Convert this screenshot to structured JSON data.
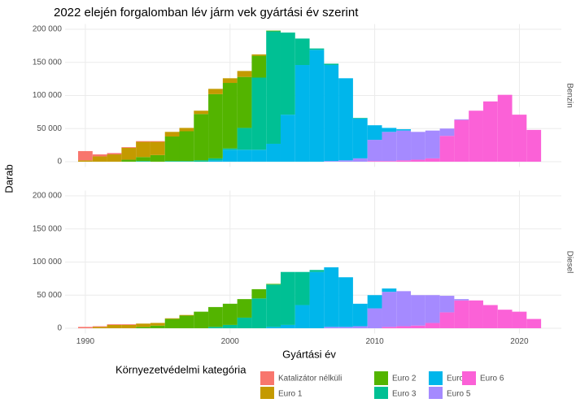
{
  "chart_data": {
    "type": "bar",
    "stacked": true,
    "title": "2022 elején forgalomban lév  járm vek gyártási év szerint",
    "xlabel": "Gyártási év",
    "ylabel": "Darab",
    "legend_title": "Környezetvédelmi kategória",
    "legend_position": "bottom",
    "grid": true,
    "facets": [
      "Benzin",
      "Diesel"
    ],
    "x": [
      1990,
      1991,
      1992,
      1993,
      1994,
      1995,
      1996,
      1997,
      1998,
      1999,
      2000,
      2001,
      2002,
      2003,
      2004,
      2005,
      2006,
      2007,
      2008,
      2009,
      2010,
      2011,
      2012,
      2013,
      2014,
      2015,
      2016,
      2017,
      2018,
      2019,
      2020,
      2021
    ],
    "xlim": [
      1988.6,
      2022.9
    ],
    "xticks": [
      1990,
      2000,
      2010,
      2020
    ],
    "ylim": [
      -8000,
      208000
    ],
    "yticks": [
      0,
      {
        "value": 50000,
        "label": "50 000"
      },
      {
        "value": 100000,
        "label": "100 000"
      },
      {
        "value": 150000,
        "label": "150 000"
      },
      {
        "value": 200000,
        "label": "200 000"
      }
    ],
    "series": [
      {
        "name": "Katalizátor nélküli",
        "color": "#F8766D",
        "values": [
          [
            14000,
            3000,
            2000,
            1000,
            1000,
            1000,
            0,
            0,
            0,
            0,
            0,
            0,
            0,
            0,
            0,
            0,
            0,
            0,
            0,
            0,
            0,
            0,
            0,
            0,
            0,
            0,
            0,
            0,
            0,
            0,
            0,
            0
          ],
          [
            2000,
            1000,
            1000,
            1000,
            0,
            0,
            0,
            0,
            0,
            0,
            0,
            0,
            0,
            0,
            0,
            0,
            0,
            0,
            0,
            0,
            0,
            0,
            0,
            0,
            0,
            0,
            0,
            0,
            0,
            0,
            0,
            0
          ]
        ]
      },
      {
        "name": "Euro 1",
        "color": "#C49A00",
        "values": [
          [
            2000,
            8000,
            11000,
            18000,
            23000,
            20000,
            7000,
            5000,
            5000,
            8000,
            7000,
            9000,
            2000,
            0,
            0,
            0,
            0,
            0,
            0,
            0,
            0,
            0,
            0,
            0,
            0,
            0,
            0,
            0,
            0,
            0,
            0,
            0
          ],
          [
            0,
            2000,
            5000,
            5000,
            5000,
            4000,
            1000,
            1000,
            0,
            0,
            0,
            0,
            0,
            0,
            0,
            0,
            0,
            0,
            0,
            0,
            0,
            0,
            0,
            0,
            0,
            0,
            0,
            0,
            0,
            0,
            0,
            0
          ]
        ]
      },
      {
        "name": "Euro 2",
        "color": "#53B400",
        "values": [
          [
            0,
            0,
            0,
            3000,
            6000,
            10000,
            37000,
            45000,
            70000,
            97000,
            99000,
            77000,
            33000,
            1000,
            0,
            0,
            0,
            0,
            0,
            0,
            0,
            0,
            0,
            0,
            0,
            0,
            0,
            0,
            0,
            0,
            0,
            0
          ],
          [
            0,
            0,
            0,
            0,
            2000,
            4000,
            14000,
            19000,
            25000,
            30000,
            32000,
            28000,
            14000,
            1000,
            0,
            0,
            0,
            0,
            0,
            0,
            0,
            0,
            0,
            0,
            0,
            0,
            0,
            0,
            0,
            0,
            0,
            0
          ]
        ]
      },
      {
        "name": "Euro 3",
        "color": "#00C094",
        "values": [
          [
            0,
            0,
            0,
            0,
            1000,
            0,
            1000,
            1000,
            2000,
            3000,
            2000,
            33000,
            109000,
            170000,
            124000,
            40000,
            2000,
            2000,
            0,
            1000,
            0,
            0,
            0,
            0,
            0,
            0,
            0,
            0,
            0,
            0,
            0,
            0
          ],
          [
            0,
            0,
            0,
            0,
            0,
            0,
            0,
            0,
            0,
            2000,
            5000,
            16000,
            45000,
            64000,
            80000,
            50000,
            3000,
            0,
            0,
            0,
            0,
            0,
            0,
            0,
            0,
            0,
            0,
            0,
            0,
            0,
            0,
            0
          ]
        ]
      },
      {
        "name": "Euro 4",
        "color": "#00B6EB",
        "values": [
          [
            0,
            0,
            0,
            0,
            0,
            0,
            0,
            0,
            0,
            2000,
            18000,
            18000,
            18000,
            27000,
            71000,
            146000,
            169000,
            145000,
            124000,
            60000,
            22000,
            6000,
            2000,
            0,
            0,
            0,
            0,
            0,
            0,
            0,
            0,
            0
          ],
          [
            0,
            0,
            0,
            0,
            0,
            0,
            0,
            0,
            0,
            0,
            0,
            0,
            0,
            2000,
            5000,
            35000,
            85000,
            90000,
            75000,
            34000,
            20000,
            5000,
            0,
            0,
            0,
            0,
            0,
            0,
            0,
            0,
            0,
            0
          ]
        ]
      },
      {
        "name": "Euro 5",
        "color": "#A58AFF",
        "values": [
          [
            0,
            0,
            0,
            0,
            0,
            0,
            0,
            0,
            0,
            0,
            0,
            0,
            0,
            0,
            0,
            0,
            0,
            1000,
            2000,
            5000,
            32000,
            44000,
            45000,
            42000,
            42000,
            11000,
            1000,
            0,
            0,
            0,
            0,
            0
          ],
          [
            0,
            0,
            0,
            0,
            0,
            0,
            0,
            0,
            0,
            0,
            0,
            0,
            0,
            0,
            0,
            0,
            0,
            2000,
            2000,
            3000,
            30000,
            53000,
            53000,
            46000,
            42000,
            25000,
            2000,
            0,
            0,
            0,
            0,
            0
          ]
        ]
      },
      {
        "name": "Euro 6",
        "color": "#FB61D7",
        "values": [
          [
            0,
            0,
            0,
            0,
            0,
            0,
            0,
            0,
            0,
            0,
            0,
            0,
            0,
            0,
            0,
            0,
            0,
            0,
            0,
            0,
            1000,
            1000,
            2000,
            3000,
            5000,
            39000,
            63000,
            77000,
            91000,
            101000,
            71000,
            48000
          ],
          [
            0,
            0,
            0,
            0,
            0,
            0,
            0,
            0,
            0,
            0,
            0,
            0,
            0,
            0,
            0,
            0,
            0,
            0,
            0,
            0,
            0,
            2000,
            3000,
            4000,
            8000,
            24000,
            42000,
            42000,
            35000,
            28000,
            25000,
            14000
          ]
        ]
      }
    ]
  }
}
